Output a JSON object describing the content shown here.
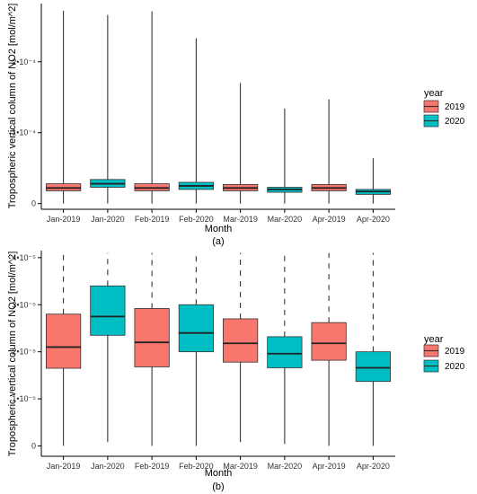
{
  "legend_title": "year",
  "colors": {
    "2019": "#f8766d",
    "2020": "#00bfc4"
  },
  "chart_data": [
    {
      "type": "box",
      "panel_label": "(a)",
      "xlabel": "Month",
      "ylabel": "Tropospheric vertical column of NO2 [mol/m^2]",
      "categories": [
        "Jan-2019",
        "Jan-2020",
        "Feb-2019",
        "Feb-2020",
        "Mar-2019",
        "Mar-2020",
        "Apr-2019",
        "Apr-2020"
      ],
      "groups": [
        "2019",
        "2020",
        "2019",
        "2020",
        "2019",
        "2020",
        "2019",
        "2020"
      ],
      "yticks": [
        0,
        0.0001,
        0.0002
      ],
      "ytick_labels": [
        "0",
        "1•10⁻⁴",
        "2•10⁻⁴"
      ],
      "ylim": [
        -8e-06,
        0.000282
      ],
      "whisker_style": "solid",
      "boxes": [
        {
          "min": 0.0,
          "q1": 1.8e-05,
          "median": 2.2e-05,
          "q3": 2.8e-05,
          "max": 0.000272
        },
        {
          "min": 0.0,
          "q1": 2.3e-05,
          "median": 2.8e-05,
          "q3": 3.4e-05,
          "max": 0.000266
        },
        {
          "min": 0.0,
          "q1": 1.8e-05,
          "median": 2.2e-05,
          "q3": 2.8e-05,
          "max": 0.000271
        },
        {
          "min": 0.0,
          "q1": 2e-05,
          "median": 2.5e-05,
          "q3": 3e-05,
          "max": 0.000233
        },
        {
          "min": 0.0,
          "q1": 1.8e-05,
          "median": 2.2e-05,
          "q3": 2.7e-05,
          "max": 0.00017
        },
        {
          "min": 0.0,
          "q1": 1.6e-05,
          "median": 2e-05,
          "q3": 2.3e-05,
          "max": 0.000134
        },
        {
          "min": 0.0,
          "q1": 1.8e-05,
          "median": 2.2e-05,
          "q3": 2.7e-05,
          "max": 0.000147
        },
        {
          "min": 0.0,
          "q1": 1.3e-05,
          "median": 1.7e-05,
          "q3": 2e-05,
          "max": 6.4e-05
        }
      ],
      "legend": {
        "title": "year",
        "entries": [
          "2019",
          "2020"
        ],
        "position": "right"
      }
    },
    {
      "type": "box",
      "panel_label": "(b)",
      "xlabel": "Month",
      "ylabel": "Tropospheric vertical column of NO2 [mol/m^2]",
      "categories": [
        "Jan-2019",
        "Jan-2020",
        "Feb-2019",
        "Feb-2020",
        "Mar-2019",
        "Mar-2020",
        "Apr-2019",
        "Apr-2020"
      ],
      "groups": [
        "2019",
        "2020",
        "2019",
        "2020",
        "2019",
        "2020",
        "2019",
        "2020"
      ],
      "yticks": [
        0,
        1e-05,
        2e-05,
        3e-05,
        4e-05
      ],
      "ytick_labels": [
        "0",
        "1•10⁻⁵",
        "2•10⁻⁵",
        "3•10⁻⁵",
        "4•10⁻⁵"
      ],
      "ylim": [
        -2.2e-06,
        4.15e-05
      ],
      "whisker_style": "dashed",
      "boxes": [
        {
          "min": 0.0,
          "q1": 1.65e-05,
          "median": 2.1e-05,
          "q3": 2.8e-05,
          "max": 4.1e-05
        },
        {
          "min": 8e-07,
          "q1": 2.35e-05,
          "median": 2.75e-05,
          "q3": 3.4e-05,
          "max": 4.1e-05
        },
        {
          "min": 0.0,
          "q1": 1.68e-05,
          "median": 2.2e-05,
          "q3": 2.92e-05,
          "max": 4.1e-05
        },
        {
          "min": 0.0,
          "q1": 2e-05,
          "median": 2.4e-05,
          "q3": 3e-05,
          "max": 4.1e-05
        },
        {
          "min": 8e-07,
          "q1": 1.78e-05,
          "median": 2.18e-05,
          "q3": 2.7e-05,
          "max": 4.1e-05
        },
        {
          "min": 4e-07,
          "q1": 1.66e-05,
          "median": 1.96e-05,
          "q3": 2.32e-05,
          "max": 4.1e-05
        },
        {
          "min": 0.0,
          "q1": 1.82e-05,
          "median": 2.18e-05,
          "q3": 2.62e-05,
          "max": 4.1e-05
        },
        {
          "min": 0.0,
          "q1": 1.37e-05,
          "median": 1.66e-05,
          "q3": 2e-05,
          "max": 4.1e-05
        }
      ],
      "legend": {
        "title": "year",
        "entries": [
          "2019",
          "2020"
        ],
        "position": "right"
      }
    }
  ]
}
